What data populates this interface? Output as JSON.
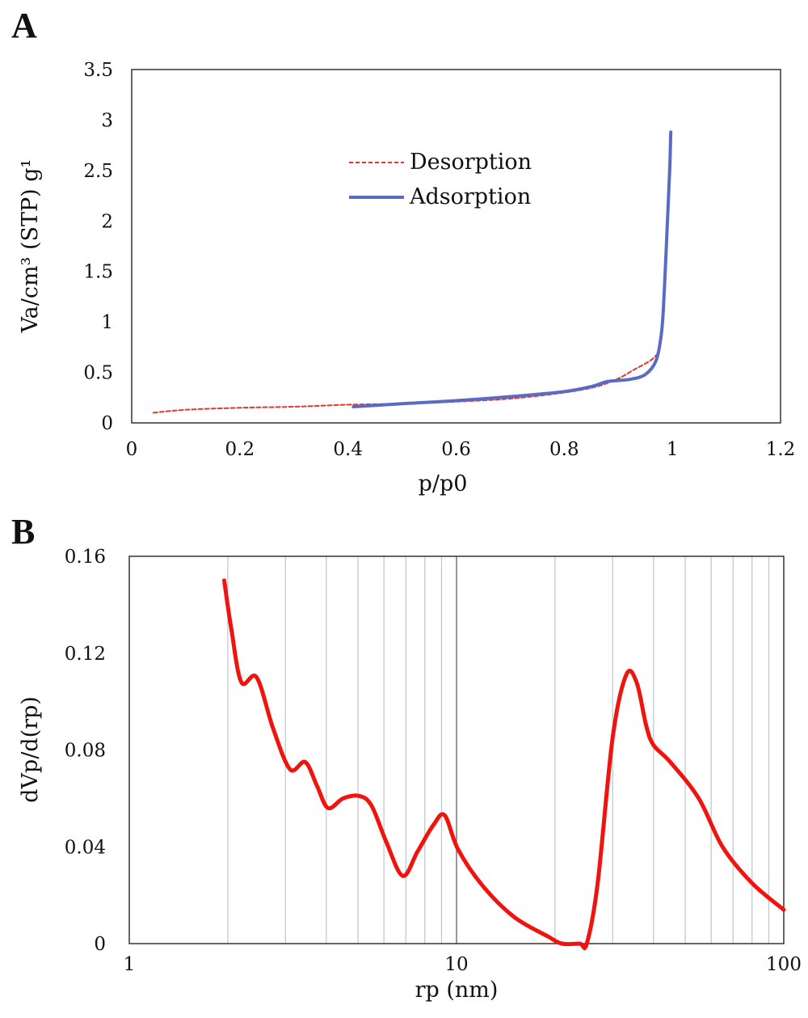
{
  "chart_data": [
    {
      "panel": "A",
      "type": "line",
      "xlabel": "p/p0",
      "ylabel": "Va/cm³ (STP) g¹",
      "xlim": [
        0,
        1.2
      ],
      "ylim": [
        0,
        3.5
      ],
      "xticks": [
        "0",
        "0.2",
        "0.4",
        "0.6",
        "0.8",
        "1",
        "1.2"
      ],
      "yticks": [
        "0",
        "0.5",
        "1",
        "1.5",
        "2",
        "2.5",
        "3",
        "3.5"
      ],
      "grid": false,
      "legend_position": "upper-center",
      "series": [
        {
          "name": "Desorption",
          "color": "#e03a2a",
          "style": "dashed",
          "x": [
            0.04,
            0.1,
            0.2,
            0.3,
            0.4,
            0.5,
            0.6,
            0.7,
            0.8,
            0.86,
            0.9,
            0.93,
            0.96,
            0.975
          ],
          "y": [
            0.1,
            0.13,
            0.15,
            0.16,
            0.18,
            0.19,
            0.21,
            0.24,
            0.3,
            0.36,
            0.44,
            0.53,
            0.62,
            0.7
          ]
        },
        {
          "name": "Adsorption",
          "color": "#5b6bc4",
          "style": "solid",
          "x": [
            0.41,
            0.5,
            0.6,
            0.7,
            0.8,
            0.85,
            0.88,
            0.92,
            0.95,
            0.97,
            0.98,
            0.985,
            0.99,
            0.995,
            0.997
          ],
          "y": [
            0.16,
            0.19,
            0.22,
            0.26,
            0.31,
            0.36,
            0.41,
            0.43,
            0.48,
            0.62,
            0.9,
            1.3,
            1.9,
            2.5,
            2.88
          ]
        }
      ]
    },
    {
      "panel": "B",
      "type": "line",
      "xlabel": "rp (nm)",
      "ylabel": "dVp/d(rp)",
      "xscale": "log",
      "xlim": [
        1,
        100
      ],
      "ylim": [
        0,
        0.16
      ],
      "xticks": [
        "1",
        "10",
        "100"
      ],
      "yticks": [
        "0",
        "0.04",
        "0.08",
        "0.12",
        "0.16"
      ],
      "grid": "vertical-minor",
      "series": [
        {
          "color": "#f0140e",
          "x": [
            1.95,
            2.05,
            2.2,
            2.45,
            2.75,
            3.1,
            3.45,
            3.75,
            4.05,
            4.5,
            5.05,
            5.5,
            6.1,
            6.85,
            7.6,
            8.5,
            9.2,
            10.1,
            12,
            15,
            19,
            21,
            23.8,
            25,
            27,
            30,
            33,
            35.5,
            38,
            40,
            45,
            55,
            65,
            80,
            100
          ],
          "y": [
            0.15,
            0.13,
            0.108,
            0.11,
            0.089,
            0.072,
            0.075,
            0.065,
            0.056,
            0.06,
            0.061,
            0.057,
            0.042,
            0.028,
            0.038,
            0.049,
            0.053,
            0.039,
            0.024,
            0.011,
            0.003,
            0.0,
            0.0,
            0.0,
            0.025,
            0.085,
            0.111,
            0.108,
            0.09,
            0.082,
            0.075,
            0.06,
            0.04,
            0.025,
            0.014
          ]
        }
      ]
    }
  ]
}
